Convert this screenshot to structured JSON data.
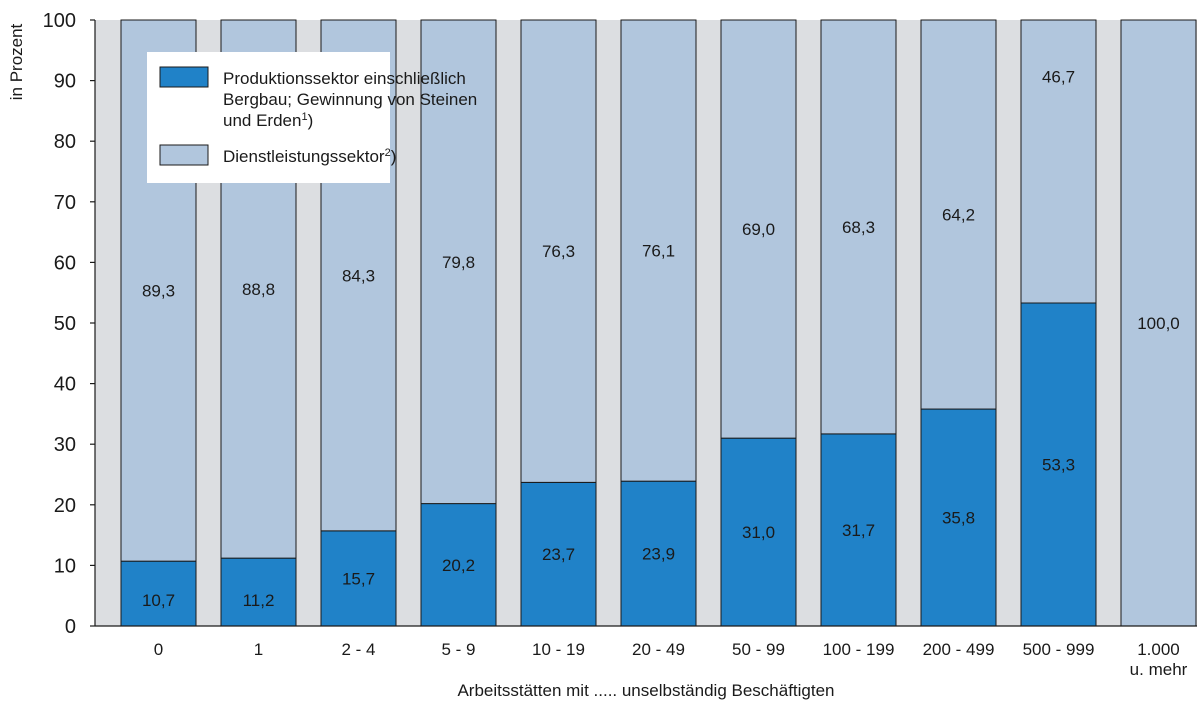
{
  "chart_data": {
    "type": "bar",
    "stacked": true,
    "percent": true,
    "categories": [
      "0",
      "1",
      "2 - 4",
      "5 - 9",
      "10 - 19",
      "20 - 49",
      "50 - 99",
      "100 - 199",
      "200 - 499",
      "500 - 999",
      "1.000\nu. mehr"
    ],
    "series": [
      {
        "name": "Produktionssektor einschließlich Bergbau; Gewinnung von Steinen und Erden¹)",
        "legend_lines": [
          "Produktionssektor einschließlich",
          "Bergbau; Gewinnung von Steinen",
          "und Erden",
          "1",
          ")"
        ],
        "color": "#2082c8",
        "values": [
          10.7,
          11.2,
          15.7,
          20.2,
          23.7,
          23.9,
          31.0,
          31.7,
          35.8,
          53.3,
          0
        ],
        "labels": [
          "10,7",
          "11,2",
          "15,7",
          "20,2",
          "23,7",
          "23,9",
          "31,0",
          "31,7",
          "35,8",
          "53,3",
          ""
        ]
      },
      {
        "name": "Dienstleistungssektor²)",
        "legend_lines": [
          "Dienstleistungssektor",
          "2",
          ")"
        ],
        "color": "#b1c6dd",
        "values": [
          89.3,
          88.8,
          84.3,
          79.8,
          76.3,
          76.1,
          69.0,
          68.3,
          64.2,
          46.7,
          100.0
        ],
        "labels": [
          "89,3",
          "88,8",
          "84,3",
          "79,8",
          "76,3",
          "76,1",
          "69,0",
          "68,3",
          "64,2",
          "46,7",
          "100,0"
        ]
      }
    ],
    "ylabel": "in Prozent",
    "xlabel": "Arbeitsstätten mit ..... unselbständig Beschäftigten",
    "ylim": [
      0,
      100
    ],
    "yticks": [
      0,
      10,
      20,
      30,
      40,
      50,
      60,
      70,
      80,
      90,
      100
    ],
    "grid": false,
    "legend_position": "top-left",
    "background_color": "#dcdee1"
  }
}
